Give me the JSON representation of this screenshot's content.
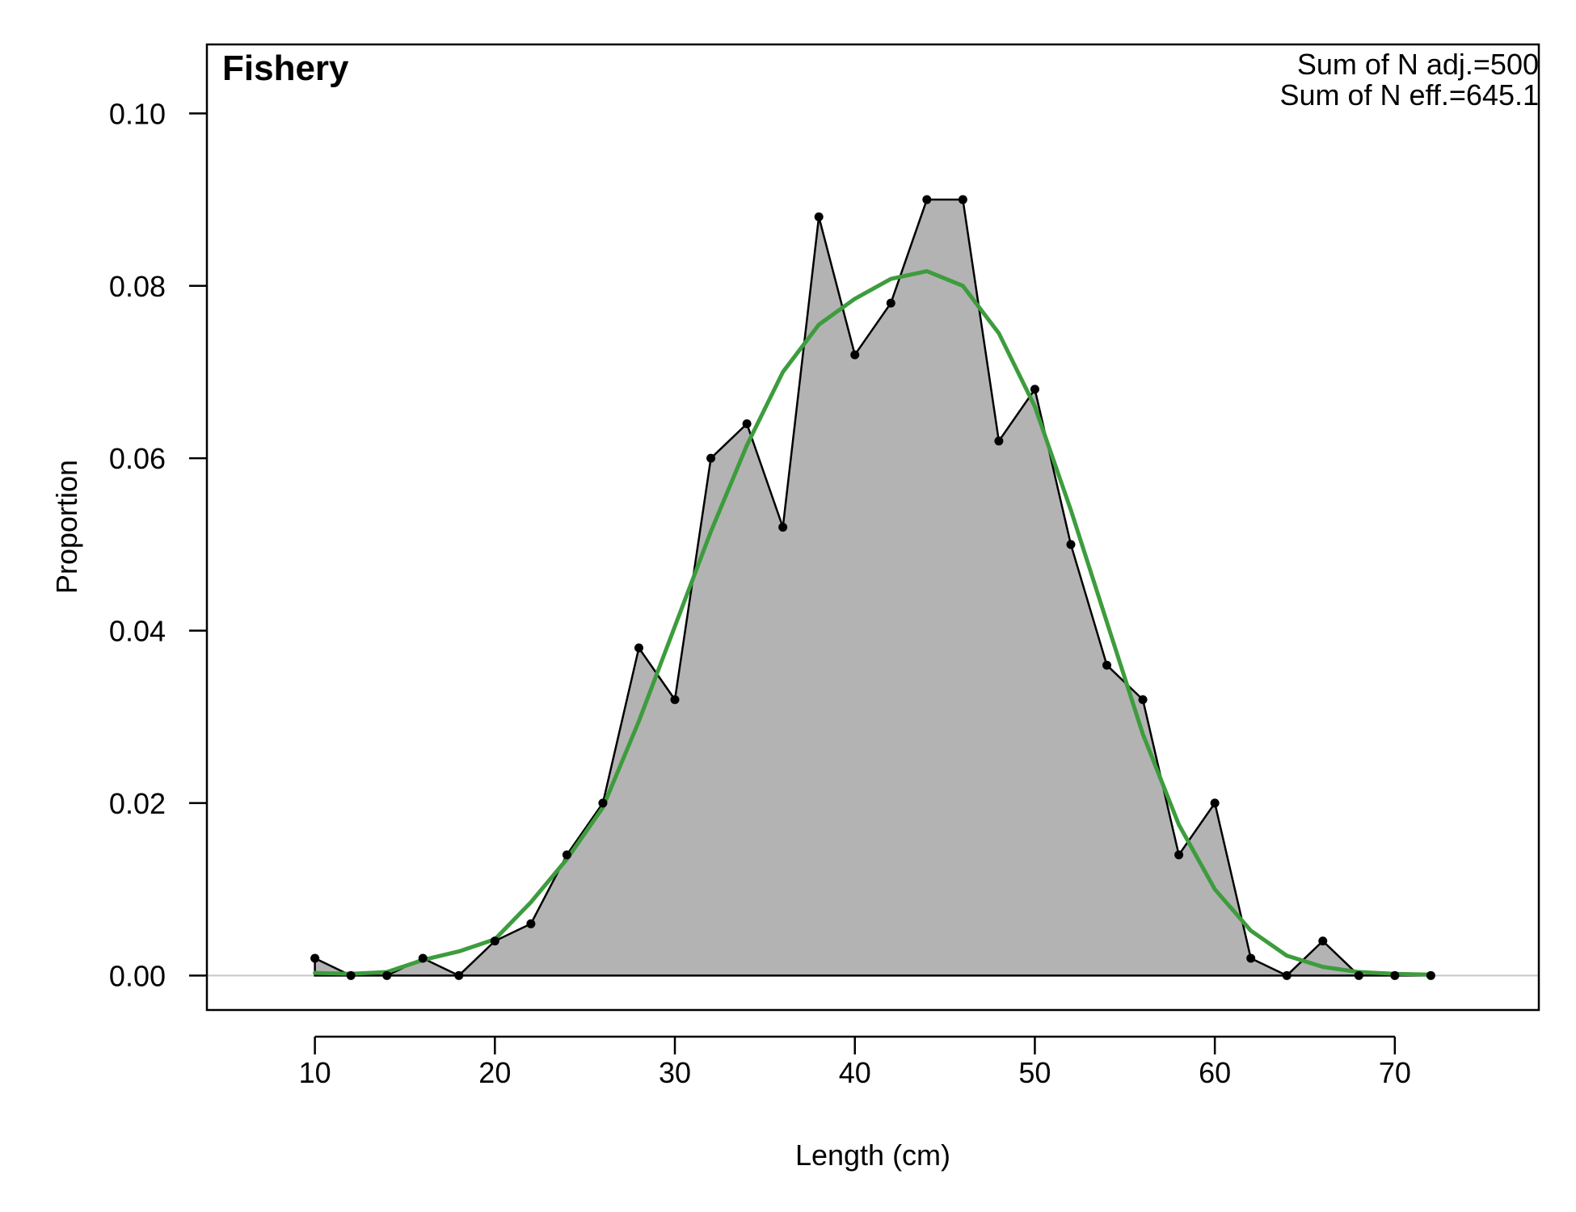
{
  "chart_data": {
    "type": "area",
    "title": "Fishery",
    "xlabel": "Length (cm)",
    "ylabel": "Proportion",
    "xlim": [
      4,
      78
    ],
    "ylim": [
      -0.004,
      0.108
    ],
    "xticks": [
      10,
      20,
      30,
      40,
      50,
      60,
      70
    ],
    "yticks": [
      0.0,
      0.02,
      0.04,
      0.06,
      0.08,
      0.1
    ],
    "ytick_labels": [
      "0.00",
      "0.02",
      "0.04",
      "0.06",
      "0.08",
      "0.10"
    ],
    "annotations": [
      "Sum of N adj.=500",
      "Sum of N eff.=645.1"
    ],
    "grid": false,
    "colors": {
      "observed_fill": "#b3b3b3",
      "observed_line": "#000000",
      "expected_line": "#3d9c3d",
      "zero_line": "#c8c8c8"
    },
    "series": [
      {
        "style": "filled-area-with-points",
        "x": [
          10,
          12,
          14,
          16,
          18,
          20,
          22,
          24,
          26,
          28,
          30,
          32,
          34,
          36,
          38,
          40,
          42,
          44,
          46,
          48,
          50,
          52,
          54,
          56,
          58,
          60,
          62,
          64,
          66,
          68,
          70,
          72
        ],
        "y": [
          0.002,
          0.0,
          0.0,
          0.002,
          0.0,
          0.004,
          0.006,
          0.014,
          0.02,
          0.038,
          0.032,
          0.06,
          0.064,
          0.052,
          0.088,
          0.072,
          0.078,
          0.09,
          0.09,
          0.062,
          0.068,
          0.05,
          0.036,
          0.032,
          0.014,
          0.02,
          0.002,
          0.0,
          0.004,
          0.0,
          0.0,
          0.0
        ]
      },
      {
        "style": "line",
        "x": [
          10,
          12,
          14,
          16,
          18,
          20,
          22,
          24,
          26,
          28,
          30,
          32,
          34,
          36,
          38,
          40,
          42,
          44,
          46,
          48,
          50,
          52,
          54,
          56,
          58,
          60,
          62,
          64,
          66,
          68,
          70,
          72
        ],
        "y": [
          0.0003,
          0.0002,
          0.0004,
          0.0018,
          0.0028,
          0.0042,
          0.0085,
          0.0135,
          0.0195,
          0.0295,
          0.0405,
          0.0515,
          0.0615,
          0.07,
          0.0755,
          0.0785,
          0.0808,
          0.0817,
          0.08,
          0.0745,
          0.066,
          0.054,
          0.041,
          0.028,
          0.0175,
          0.01,
          0.0052,
          0.0023,
          0.001,
          0.0004,
          0.0002,
          0.0001
        ]
      }
    ]
  }
}
